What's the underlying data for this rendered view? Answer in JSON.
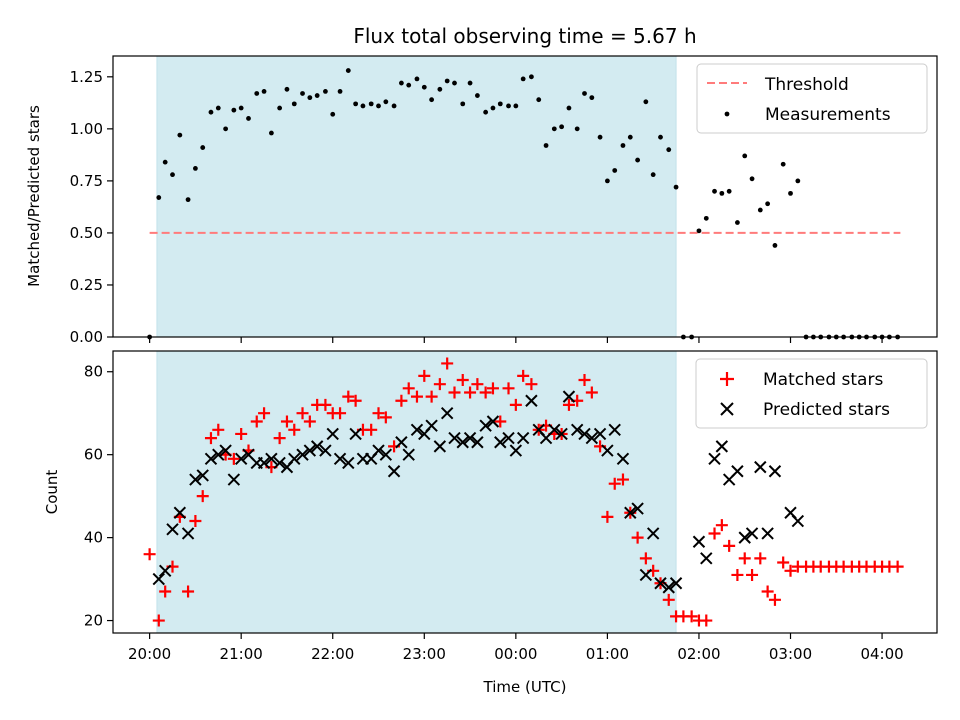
{
  "chart_data": [
    {
      "type": "scatter",
      "title": "Flux total observing time = 5.67 h",
      "ylabel": "Matched/Predicted stars",
      "xlabel": "",
      "x_units": "hours since 20:00 UTC",
      "xlim": [
        -0.4,
        8.6
      ],
      "ylim": [
        0,
        1.35
      ],
      "yticks": [
        0,
        0.25,
        0.5,
        0.75,
        1.0,
        1.25
      ],
      "ytick_labels": [
        "0.00",
        "0.25",
        "0.50",
        "0.75",
        "1.00",
        "1.25"
      ],
      "xticks": [
        0,
        1,
        2,
        3,
        4,
        5,
        6,
        7,
        8
      ],
      "legend_position": "top-right",
      "shaded_span": [
        0.08,
        5.75
      ],
      "shaded_color": "#d3ebf1",
      "threshold": {
        "name": "Threshold",
        "value": 0.5,
        "x_range": [
          0,
          8.2
        ],
        "color": "#ff7b7b"
      },
      "series": [
        {
          "name": "Measurements",
          "color": "#000000",
          "marker": "dot",
          "x": [
            0.0,
            0.1,
            0.17,
            0.25,
            0.33,
            0.42,
            0.5,
            0.58,
            0.67,
            0.75,
            0.83,
            0.92,
            1.0,
            1.08,
            1.17,
            1.25,
            1.33,
            1.42,
            1.5,
            1.58,
            1.67,
            1.75,
            1.83,
            1.92,
            2.0,
            2.08,
            2.17,
            2.25,
            2.33,
            2.42,
            2.5,
            2.58,
            2.67,
            2.75,
            2.83,
            2.92,
            3.0,
            3.08,
            3.17,
            3.25,
            3.33,
            3.42,
            3.5,
            3.58,
            3.67,
            3.75,
            3.83,
            3.92,
            4.0,
            4.08,
            4.17,
            4.25,
            4.33,
            4.42,
            4.5,
            4.58,
            4.67,
            4.75,
            4.83,
            4.92,
            5.0,
            5.08,
            5.17,
            5.25,
            5.33,
            5.42,
            5.5,
            5.58,
            5.67,
            5.75,
            5.83,
            5.92,
            6.0,
            6.08,
            6.17,
            6.25,
            6.33,
            6.42,
            6.5,
            6.58,
            6.67,
            6.75,
            6.83,
            6.92,
            7.0,
            7.08,
            7.17,
            7.25,
            7.33,
            7.42,
            7.5,
            7.58,
            7.67,
            7.75,
            7.83,
            7.92,
            8.0,
            8.08,
            8.17
          ],
          "y": [
            0.0,
            0.67,
            0.84,
            0.78,
            0.97,
            0.66,
            0.81,
            0.91,
            1.08,
            1.1,
            1.0,
            1.09,
            1.1,
            1.05,
            1.17,
            1.18,
            0.98,
            1.1,
            1.19,
            1.12,
            1.17,
            1.15,
            1.16,
            1.18,
            1.07,
            1.18,
            1.28,
            1.12,
            1.11,
            1.12,
            1.11,
            1.13,
            1.11,
            1.22,
            1.21,
            1.24,
            1.2,
            1.14,
            1.19,
            1.23,
            1.22,
            1.12,
            1.22,
            1.16,
            1.08,
            1.1,
            1.12,
            1.11,
            1.11,
            1.24,
            1.25,
            1.14,
            0.92,
            1.0,
            1.01,
            1.1,
            1.0,
            1.17,
            1.15,
            0.96,
            0.75,
            0.8,
            0.92,
            0.96,
            0.85,
            1.13,
            0.78,
            0.96,
            0.9,
            0.72,
            0.0,
            0.0,
            0.51,
            0.57,
            0.7,
            0.69,
            0.7,
            0.55,
            0.87,
            0.76,
            0.61,
            0.64,
            0.44,
            0.83,
            0.69,
            0.75,
            0.0,
            0.0,
            0.0,
            0.0,
            0.0,
            0.0,
            0.0,
            0.0,
            0.0,
            0.0,
            0.0,
            0.0,
            0.0
          ]
        }
      ]
    },
    {
      "type": "scatter",
      "title": "",
      "ylabel": "Count",
      "xlabel": "Time (UTC)",
      "x_units": "hours since 20:00 UTC",
      "xlim": [
        -0.4,
        8.6
      ],
      "ylim": [
        17,
        85
      ],
      "yticks": [
        20,
        40,
        60,
        80
      ],
      "ytick_labels": [
        "20",
        "40",
        "60",
        "80"
      ],
      "xticks": [
        0,
        1,
        2,
        3,
        4,
        5,
        6,
        7,
        8
      ],
      "xtick_labels": [
        "20:00",
        "21:00",
        "22:00",
        "23:00",
        "00:00",
        "01:00",
        "02:00",
        "03:00",
        "04:00"
      ],
      "legend_position": "top-right",
      "shaded_span": [
        0.08,
        5.75
      ],
      "shaded_color": "#d3ebf1",
      "series": [
        {
          "name": "Matched stars",
          "color": "#ff0000",
          "marker": "plus",
          "x": [
            0.0,
            0.1,
            0.17,
            0.25,
            0.33,
            0.42,
            0.5,
            0.58,
            0.67,
            0.75,
            0.83,
            0.92,
            1.0,
            1.08,
            1.17,
            1.25,
            1.33,
            1.42,
            1.5,
            1.58,
            1.67,
            1.75,
            1.83,
            1.92,
            2.0,
            2.08,
            2.17,
            2.25,
            2.33,
            2.42,
            2.5,
            2.58,
            2.67,
            2.75,
            2.83,
            2.92,
            3.0,
            3.08,
            3.17,
            3.25,
            3.33,
            3.42,
            3.5,
            3.58,
            3.67,
            3.75,
            3.83,
            3.92,
            4.0,
            4.08,
            4.17,
            4.25,
            4.33,
            4.42,
            4.5,
            4.58,
            4.67,
            4.75,
            4.83,
            4.92,
            5.0,
            5.08,
            5.17,
            5.25,
            5.33,
            5.42,
            5.5,
            5.58,
            5.67,
            5.75,
            5.83,
            5.92,
            6.0,
            6.08,
            6.17,
            6.25,
            6.33,
            6.42,
            6.5,
            6.58,
            6.67,
            6.75,
            6.83,
            6.92,
            7.0,
            7.08,
            7.17,
            7.25,
            7.33,
            7.42,
            7.5,
            7.58,
            7.67,
            7.75,
            7.83,
            7.92,
            8.0,
            8.08,
            8.17
          ],
          "y": [
            36,
            20,
            27,
            33,
            45,
            27,
            44,
            50,
            64,
            66,
            60,
            59,
            65,
            61,
            68,
            70,
            57,
            64,
            68,
            66,
            70,
            68,
            72,
            72,
            70,
            70,
            74,
            73,
            66,
            66,
            70,
            69,
            62,
            73,
            76,
            74,
            79,
            74,
            77,
            82,
            75,
            78,
            75,
            77,
            75,
            76,
            68,
            76,
            72,
            79,
            77,
            66,
            67,
            65,
            65,
            72,
            73,
            78,
            75,
            62,
            45,
            53,
            54,
            46,
            40,
            35,
            32,
            29,
            25,
            21,
            21,
            21,
            20,
            20,
            41,
            43,
            38,
            31,
            35,
            31,
            35,
            27,
            25,
            34,
            32,
            33,
            33,
            33,
            33,
            33,
            33,
            33,
            33,
            33,
            33,
            33,
            33,
            33,
            33
          ]
        },
        {
          "name": "Predicted stars",
          "color": "#000000",
          "marker": "cross",
          "x": [
            0.1,
            0.17,
            0.25,
            0.33,
            0.42,
            0.5,
            0.58,
            0.67,
            0.75,
            0.83,
            0.92,
            1.0,
            1.08,
            1.17,
            1.25,
            1.33,
            1.42,
            1.5,
            1.58,
            1.67,
            1.75,
            1.83,
            1.92,
            2.0,
            2.08,
            2.17,
            2.25,
            2.33,
            2.42,
            2.5,
            2.58,
            2.67,
            2.75,
            2.83,
            2.92,
            3.0,
            3.08,
            3.17,
            3.25,
            3.33,
            3.42,
            3.5,
            3.58,
            3.67,
            3.75,
            3.83,
            3.92,
            4.0,
            4.08,
            4.17,
            4.25,
            4.33,
            4.42,
            4.5,
            4.58,
            4.67,
            4.75,
            4.83,
            4.92,
            5.0,
            5.08,
            5.17,
            5.25,
            5.33,
            5.42,
            5.5,
            5.58,
            5.67,
            5.75,
            6.0,
            6.08,
            6.17,
            6.25,
            6.33,
            6.42,
            6.5,
            6.58,
            6.67,
            6.75,
            6.83,
            7.0,
            7.08
          ],
          "y": [
            30,
            32,
            42,
            46,
            41,
            54,
            55,
            59,
            60,
            61,
            54,
            59,
            60,
            58,
            58,
            59,
            58,
            57,
            59,
            60,
            61,
            62,
            61,
            65,
            59,
            58,
            65,
            59,
            59,
            61,
            60,
            56,
            63,
            60,
            66,
            65,
            67,
            62,
            70,
            64,
            63,
            64,
            63,
            67,
            68,
            63,
            64,
            61,
            64,
            73,
            66,
            64,
            66,
            65,
            74,
            66,
            65,
            64,
            65,
            61,
            66,
            59,
            46,
            47,
            31,
            41,
            29,
            28,
            29,
            39,
            35,
            59,
            62,
            54,
            56,
            40,
            41,
            57,
            41,
            56,
            46,
            44
          ]
        }
      ]
    }
  ]
}
